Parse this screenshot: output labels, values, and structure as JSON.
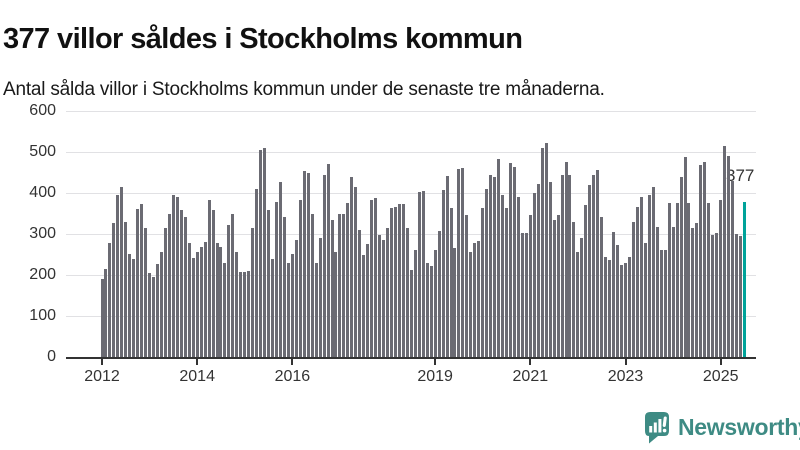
{
  "header": {
    "title": "377 villor såldes i Stockholms kommun",
    "subtitle": "Antal sålda villor i Stockholms kommun under de senaste tre månaderna."
  },
  "chart_data": {
    "type": "bar",
    "title": "377 villor såldes i Stockholms kommun",
    "subtitle": "Antal sålda villor i Stockholms kommun under de senaste tre månaderna.",
    "frequency": "monthly",
    "period_start": "2012-01",
    "period_end": "2025-07",
    "ylim": [
      0,
      600
    ],
    "y_ticks": [
      0,
      100,
      200,
      300,
      400,
      500,
      600
    ],
    "x_tick_labels": [
      "2012",
      "2014",
      "2016",
      "2019",
      "2021",
      "2023",
      "2025"
    ],
    "x_tick_month_indices": [
      0,
      24,
      48,
      84,
      108,
      132,
      156
    ],
    "grid": true,
    "legend": "none",
    "values": [
      190,
      214,
      279,
      326,
      395,
      414,
      330,
      251,
      239,
      361,
      373,
      314,
      204,
      196,
      228,
      257,
      314,
      350,
      395,
      391,
      358,
      341,
      277,
      241,
      255,
      268,
      281,
      384,
      358,
      279,
      269,
      229,
      322,
      350,
      257,
      208,
      208,
      211,
      314,
      409,
      505,
      511,
      358,
      238,
      379,
      427,
      341,
      229,
      251,
      285,
      384,
      453,
      449,
      350,
      229,
      291,
      444,
      470,
      334,
      257,
      350,
      348,
      375,
      438,
      414,
      310,
      249,
      276,
      383,
      387,
      298,
      285,
      314,
      363,
      367,
      372,
      372,
      314,
      212,
      261,
      403,
      406,
      229,
      223,
      261,
      308,
      407,
      441,
      363,
      265,
      458,
      462,
      346,
      257,
      279,
      284,
      363,
      411,
      444,
      440,
      484,
      395,
      363,
      472,
      464,
      391,
      303,
      303,
      346,
      400,
      423,
      510,
      521,
      427,
      334,
      346,
      444,
      476,
      444,
      330,
      257,
      290,
      371,
      419,
      444,
      456,
      342,
      245,
      237,
      306,
      273,
      225,
      229,
      245,
      330,
      367,
      391,
      277,
      395,
      414,
      318,
      261,
      261,
      375,
      318,
      375,
      438,
      487,
      375,
      314,
      326,
      468,
      476,
      375,
      298,
      302,
      383,
      515,
      490,
      430,
      300,
      295,
      377
    ],
    "highlight_index": 162,
    "annotation": {
      "text": "377",
      "value": 377
    },
    "bar_color": "#6b6b73",
    "highlight_color": "#00a39a"
  },
  "footer": {
    "brand": "Newsworthy"
  },
  "colors": {
    "title_text": "#111111",
    "body_text": "#1a1a1a",
    "axis": "#333333",
    "gridline": "#e1e1e4",
    "bar": "#6b6b73",
    "highlight": "#00a39a",
    "annotation_text": "#333333",
    "logo": "#3e8b84"
  }
}
